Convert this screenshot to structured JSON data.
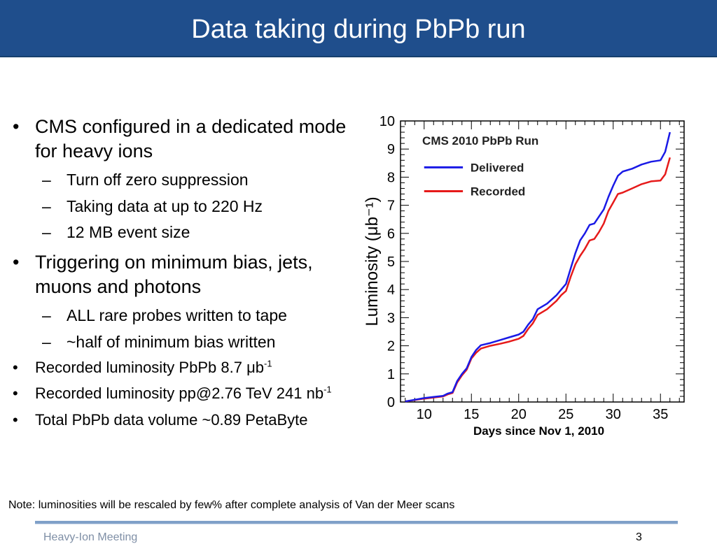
{
  "slide": {
    "title": "Data taking during PbPb run",
    "note": "Note: luminosities will be rescaled by few% after complete analysis of Van der Meer scans",
    "footer_left": "Heavy-Ion Meeting",
    "page_number": "3"
  },
  "bullets": {
    "b1": "CMS configured in a dedicated mode for heavy ions",
    "b1_sub": [
      "Turn off zero suppression",
      "Taking data at up to 220 Hz",
      "12 MB event size"
    ],
    "b2": "Triggering on minimum bias, jets, muons and photons",
    "b2_sub": [
      "ALL rare probes written to tape",
      "~half of minimum bias written"
    ],
    "b3_prefix": "Recorded luminosity PbPb 8.7 ",
    "b3_unit": "μb",
    "b3_sup": "-1",
    "b4_prefix": "Recorded luminosity pp@2.76 TeV 241 nb",
    "b4_sup": "-1",
    "b5": "Total PbPb data volume ~0.89 PetaByte",
    "bullet_glyph": "•",
    "dash_glyph": "–"
  },
  "chart_data": {
    "type": "line",
    "title": "CMS 2010 PbPb Run",
    "xlabel": "Days since Nov 1, 2010",
    "ylabel": "Luminosity (μb⁻¹)",
    "xlim": [
      7.5,
      37.5
    ],
    "ylim": [
      0,
      10
    ],
    "xticks": [
      10,
      15,
      20,
      25,
      30,
      35
    ],
    "yticks": [
      0,
      1,
      2,
      3,
      4,
      5,
      6,
      7,
      8,
      9,
      10
    ],
    "grid": false,
    "legend": "top-left",
    "series": [
      {
        "name": "Delivered",
        "color": "#1a1ae6",
        "x": [
          8,
          9,
          10,
          11,
          12,
          12.5,
          13,
          13.5,
          14,
          14.5,
          15,
          15.5,
          16,
          17,
          18,
          19,
          20,
          20.5,
          21,
          21.5,
          22,
          23,
          24,
          24.5,
          25,
          25.5,
          26,
          26.5,
          27,
          27.5,
          28,
          28.5,
          29,
          29.5,
          30,
          30.5,
          31,
          32,
          33,
          34,
          35,
          35.5,
          36
        ],
        "y": [
          0.02,
          0.08,
          0.14,
          0.18,
          0.22,
          0.3,
          0.35,
          0.75,
          1.0,
          1.2,
          1.6,
          1.85,
          2.02,
          2.1,
          2.2,
          2.3,
          2.4,
          2.5,
          2.75,
          2.95,
          3.3,
          3.5,
          3.8,
          4.0,
          4.2,
          4.75,
          5.3,
          5.75,
          6.0,
          6.3,
          6.35,
          6.6,
          6.85,
          7.3,
          7.7,
          8.05,
          8.2,
          8.3,
          8.45,
          8.55,
          8.6,
          8.9,
          9.6
        ]
      },
      {
        "name": "Recorded",
        "color": "#e61a1a",
        "x": [
          8,
          9,
          10,
          11,
          12,
          12.5,
          13,
          13.5,
          14,
          14.5,
          15,
          15.5,
          16,
          17,
          18,
          19,
          20,
          20.5,
          21,
          21.5,
          22,
          23,
          24,
          24.5,
          25,
          25.5,
          26,
          26.5,
          27,
          27.5,
          28,
          28.5,
          29,
          29.5,
          30,
          30.5,
          31,
          32,
          33,
          34,
          35,
          35.5,
          36
        ],
        "y": [
          0.02,
          0.07,
          0.12,
          0.16,
          0.2,
          0.27,
          0.32,
          0.7,
          0.95,
          1.15,
          1.55,
          1.75,
          1.9,
          2.0,
          2.07,
          2.15,
          2.25,
          2.35,
          2.6,
          2.8,
          3.1,
          3.3,
          3.6,
          3.8,
          3.95,
          4.45,
          4.9,
          5.2,
          5.45,
          5.75,
          5.8,
          6.05,
          6.35,
          6.8,
          7.1,
          7.4,
          7.45,
          7.6,
          7.75,
          7.85,
          7.88,
          8.1,
          8.7
        ]
      }
    ]
  }
}
